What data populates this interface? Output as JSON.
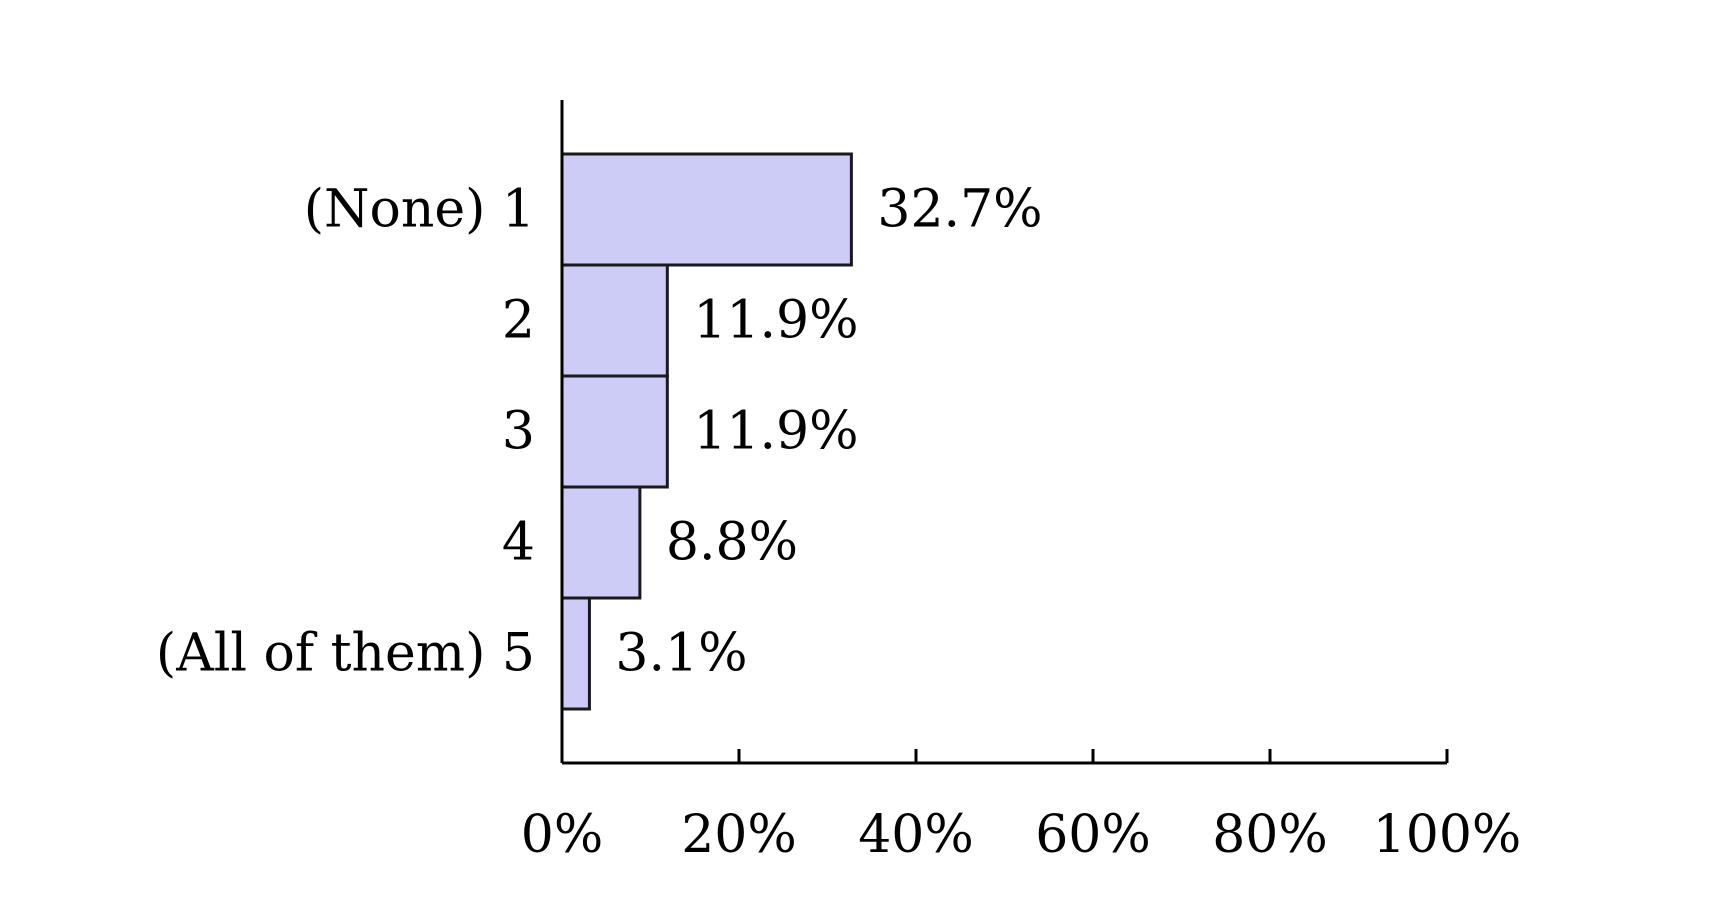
{
  "chart_data": {
    "type": "bar",
    "orientation": "horizontal",
    "categories": [
      "(None) 1",
      "2",
      "3",
      "4",
      "(All of them) 5"
    ],
    "values": [
      32.7,
      11.9,
      11.9,
      8.8,
      3.1
    ],
    "value_labels": [
      "32.7%",
      "11.9%",
      "11.9%",
      "8.8%",
      "3.1%"
    ],
    "xlim": [
      0,
      100
    ],
    "xticks": [
      0,
      20,
      40,
      60,
      80,
      100
    ],
    "xtick_labels": [
      "0%",
      "20%",
      "40%",
      "60%",
      "80%",
      "100%"
    ],
    "title": "",
    "xlabel": "",
    "ylabel": "",
    "grid": false,
    "legend": "none",
    "bar_color": "#ccccf7",
    "bar_edge_color": "#1a1a1a"
  }
}
